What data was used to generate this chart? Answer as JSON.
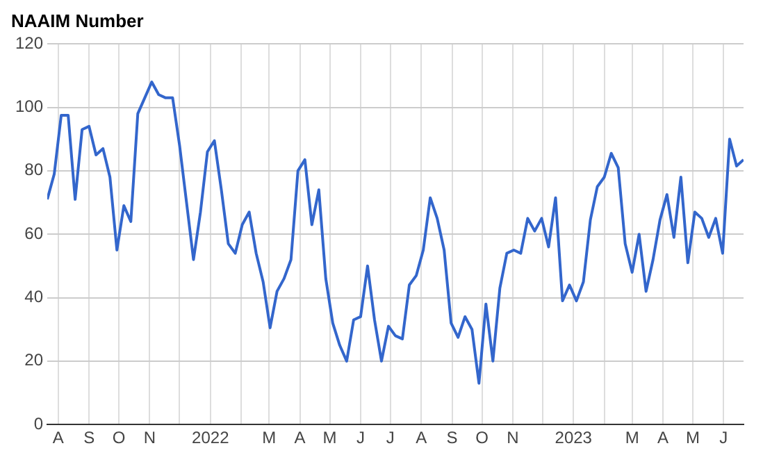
{
  "chart_data": {
    "type": "line",
    "title": "NAAIM Number",
    "x": [
      "2021-07-21",
      "2021-07-28",
      "2021-08-04",
      "2021-08-11",
      "2021-08-18",
      "2021-08-25",
      "2021-09-01",
      "2021-09-08",
      "2021-09-15",
      "2021-09-22",
      "2021-09-29",
      "2021-10-06",
      "2021-10-13",
      "2021-10-20",
      "2021-10-27",
      "2021-11-03",
      "2021-11-10",
      "2021-11-17",
      "2021-11-24",
      "2021-12-01",
      "2021-12-08",
      "2021-12-15",
      "2021-12-22",
      "2021-12-29",
      "2022-01-05",
      "2022-01-12",
      "2022-01-19",
      "2022-01-26",
      "2022-02-02",
      "2022-02-09",
      "2022-02-16",
      "2022-02-23",
      "2022-03-02",
      "2022-03-09",
      "2022-03-16",
      "2022-03-23",
      "2022-03-30",
      "2022-04-06",
      "2022-04-13",
      "2022-04-20",
      "2022-04-27",
      "2022-05-04",
      "2022-05-11",
      "2022-05-18",
      "2022-05-25",
      "2022-06-01",
      "2022-06-08",
      "2022-06-15",
      "2022-06-22",
      "2022-06-29",
      "2022-07-06",
      "2022-07-13",
      "2022-07-20",
      "2022-07-27",
      "2022-08-03",
      "2022-08-10",
      "2022-08-17",
      "2022-08-24",
      "2022-08-31",
      "2022-09-07",
      "2022-09-14",
      "2022-09-21",
      "2022-09-28",
      "2022-10-05",
      "2022-10-12",
      "2022-10-19",
      "2022-10-26",
      "2022-11-02",
      "2022-11-09",
      "2022-11-16",
      "2022-11-23",
      "2022-11-30",
      "2022-12-07",
      "2022-12-14",
      "2022-12-21",
      "2022-12-28",
      "2023-01-04",
      "2023-01-11",
      "2023-01-18",
      "2023-01-25",
      "2023-02-01",
      "2023-02-08",
      "2023-02-15",
      "2023-02-22",
      "2023-03-01",
      "2023-03-08",
      "2023-03-15",
      "2023-03-22",
      "2023-03-29",
      "2023-04-05",
      "2023-04-12",
      "2023-04-19",
      "2023-04-26",
      "2023-05-03",
      "2023-05-10",
      "2023-05-17",
      "2023-05-24",
      "2023-05-31",
      "2023-06-07",
      "2023-06-14",
      "2023-06-21"
    ],
    "series": [
      {
        "color": "#3366cc",
        "values": [
          71,
          79,
          97.5,
          97.5,
          71,
          93,
          94,
          85,
          87,
          78,
          55,
          69,
          64,
          98,
          103,
          108,
          104,
          103,
          103,
          88,
          70,
          52,
          67,
          86,
          89.5,
          74,
          57,
          54,
          63,
          67,
          54,
          45,
          30.5,
          42,
          46,
          52,
          80,
          83.5,
          63,
          74,
          46,
          32,
          25,
          20,
          33,
          34,
          50,
          33,
          20,
          31,
          28,
          27,
          44,
          47,
          55,
          71.5,
          65,
          55,
          32,
          27.5,
          34,
          30,
          13,
          38,
          20,
          43,
          54,
          55,
          54,
          65,
          61,
          65,
          56,
          71.5,
          39,
          44,
          39,
          45,
          64.5,
          75,
          78,
          85.5,
          81,
          57,
          48,
          60,
          42,
          52,
          64.5,
          72.5,
          59,
          78,
          51,
          67,
          65,
          59,
          65,
          54,
          90,
          81.5,
          83.5
        ]
      }
    ],
    "xlim": [
      "2021-07-21",
      "2023-06-21"
    ],
    "xticks": [
      {
        "value": "2021-08-01",
        "label": "A"
      },
      {
        "value": "2021-09-01",
        "label": "S"
      },
      {
        "value": "2021-10-01",
        "label": "O"
      },
      {
        "value": "2021-11-01",
        "label": "N"
      },
      {
        "value": "2021-12-01",
        "label": null
      },
      {
        "value": "2022-01-01",
        "label": "2022"
      },
      {
        "value": "2022-02-01",
        "label": null
      },
      {
        "value": "2022-03-01",
        "label": "M"
      },
      {
        "value": "2022-04-01",
        "label": "A"
      },
      {
        "value": "2022-05-01",
        "label": "M"
      },
      {
        "value": "2022-06-01",
        "label": "J"
      },
      {
        "value": "2022-07-01",
        "label": "J"
      },
      {
        "value": "2022-08-01",
        "label": "A"
      },
      {
        "value": "2022-09-01",
        "label": "S"
      },
      {
        "value": "2022-10-01",
        "label": "O"
      },
      {
        "value": "2022-11-01",
        "label": "N"
      },
      {
        "value": "2022-12-01",
        "label": null
      },
      {
        "value": "2023-01-01",
        "label": "2023"
      },
      {
        "value": "2023-02-01",
        "label": null
      },
      {
        "value": "2023-03-01",
        "label": "M"
      },
      {
        "value": "2023-04-01",
        "label": "A"
      },
      {
        "value": "2023-05-01",
        "label": "M"
      },
      {
        "value": "2023-06-01",
        "label": "J"
      }
    ],
    "ylim": [
      0,
      120
    ],
    "yticks": [
      0,
      20,
      40,
      60,
      80,
      100,
      120
    ],
    "grid": true,
    "legend": false,
    "marker": "none",
    "line_style": "solid"
  }
}
